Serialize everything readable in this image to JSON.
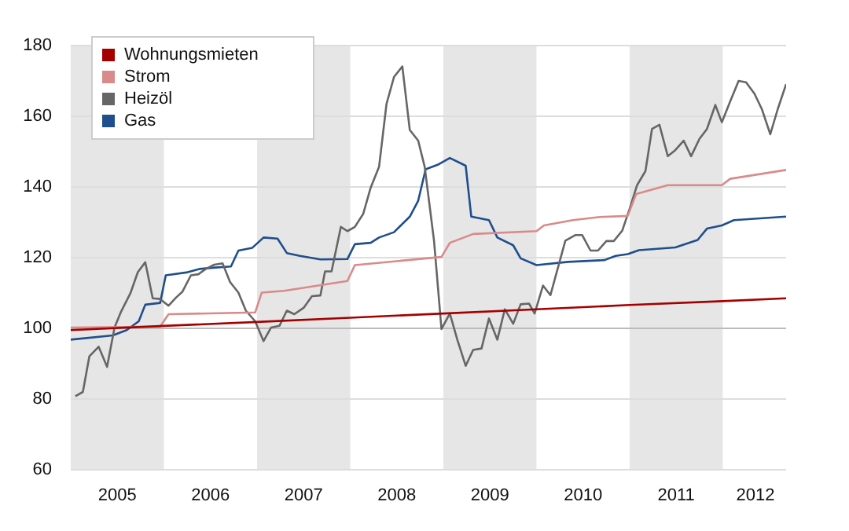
{
  "chart_data": {
    "type": "line",
    "xlim": [
      2005,
      2012.68
    ],
    "ylim": [
      60,
      180
    ],
    "yticks": [
      60,
      80,
      100,
      120,
      140,
      160,
      180
    ],
    "xticks": [
      {
        "value": 2005.5,
        "label": "2005"
      },
      {
        "value": 2006.5,
        "label": "2006"
      },
      {
        "value": 2007.5,
        "label": "2007"
      },
      {
        "value": 2008.5,
        "label": "2008"
      },
      {
        "value": 2009.5,
        "label": "2009"
      },
      {
        "value": 2010.5,
        "label": "2010"
      },
      {
        "value": 2011.5,
        "label": "2011"
      },
      {
        "value": 2012.35,
        "label": "2012"
      }
    ],
    "grid": "y",
    "legend": "top left",
    "ref_lines": [
      {
        "axis": "y",
        "value": 100,
        "color": "#bbbbbb"
      }
    ],
    "marker": "none",
    "line_style": "solid",
    "bands": [
      {
        "axis": "x",
        "from": 2005,
        "to": 2006,
        "color": "#e6e6e6"
      },
      {
        "axis": "x",
        "from": 2007,
        "to": 2008,
        "color": "#e6e6e6"
      },
      {
        "axis": "x",
        "from": 2009,
        "to": 2010,
        "color": "#e6e6e6"
      },
      {
        "axis": "x",
        "from": 2011,
        "to": 2012,
        "color": "#e6e6e6"
      }
    ],
    "series": [
      {
        "name": "Wohnungsmieten",
        "color": "#a50000",
        "x": [
          2005.0,
          2006.0,
          2007.0,
          2008.0,
          2009.0,
          2010.0,
          2011.0,
          2012.0,
          2012.68
        ],
        "values": [
          99.5,
          100.7,
          101.8,
          103.0,
          104.2,
          105.4,
          106.6,
          107.7,
          108.5
        ]
      },
      {
        "name": "Strom",
        "color": "#d98a8a",
        "x": [
          2005.0,
          2005.96,
          2006.05,
          2006.98,
          2007.05,
          2007.29,
          2007.97,
          2008.05,
          2008.98,
          2009.07,
          2009.32,
          2010.0,
          2010.08,
          2010.39,
          2010.68,
          2010.98,
          2011.07,
          2011.41,
          2011.99,
          2012.08,
          2012.68
        ],
        "values": [
          100.2,
          100.5,
          104,
          104.5,
          110.1,
          110.6,
          113.4,
          117.9,
          120.2,
          124.2,
          126.7,
          127.5,
          129.1,
          130.6,
          131.5,
          131.8,
          138.0,
          140.5,
          140.5,
          142.3,
          144.8
        ]
      },
      {
        "name": "Heizöl",
        "color": "#666666",
        "x": [
          2005.05,
          2005.13,
          2005.2,
          2005.3,
          2005.39,
          2005.47,
          2005.54,
          2005.64,
          2005.72,
          2005.8,
          2005.88,
          2005.96,
          2006.05,
          2006.13,
          2006.2,
          2006.29,
          2006.37,
          2006.45,
          2006.54,
          2006.63,
          2006.71,
          2006.8,
          2006.88,
          2006.98,
          2007.07,
          2007.15,
          2007.24,
          2007.32,
          2007.4,
          2007.5,
          2007.59,
          2007.68,
          2007.73,
          2007.8,
          2007.9,
          2007.97,
          2008.05,
          2008.14,
          2008.22,
          2008.31,
          2008.39,
          2008.47,
          2008.56,
          2008.64,
          2008.73,
          2008.8,
          2008.9,
          2008.98,
          2009.07,
          2009.15,
          2009.24,
          2009.32,
          2009.41,
          2009.49,
          2009.58,
          2009.66,
          2009.75,
          2009.83,
          2009.92,
          2009.98,
          2010.07,
          2010.15,
          2010.31,
          2010.42,
          2010.49,
          2010.58,
          2010.66,
          2010.75,
          2010.83,
          2010.92,
          2011.0,
          2011.08,
          2011.17,
          2011.24,
          2011.32,
          2011.41,
          2011.49,
          2011.58,
          2011.66,
          2011.75,
          2011.83,
          2011.92,
          2011.99,
          2012.08,
          2012.17,
          2012.25,
          2012.34,
          2012.42,
          2012.51,
          2012.59,
          2012.68
        ],
        "values": [
          80.8,
          82,
          92.1,
          94.8,
          89.1,
          100.2,
          104.7,
          109.9,
          115.9,
          118.7,
          108.5,
          108.3,
          106.4,
          108.7,
          110.4,
          115,
          115.3,
          116.8,
          118,
          118.4,
          113.1,
          110.1,
          105,
          102,
          96.4,
          100.2,
          100.7,
          105,
          104,
          105.8,
          109.1,
          109.3,
          116.1,
          116.1,
          128.7,
          127.5,
          128.7,
          132.4,
          139.8,
          145.7,
          163.5,
          171.1,
          174.1,
          156.1,
          153.1,
          145.7,
          124.8,
          99.8,
          104.2,
          96.8,
          89.4,
          93.9,
          94.3,
          102.8,
          96.8,
          105.4,
          101.3,
          106.8,
          107,
          104.2,
          112.1,
          109.4,
          124.8,
          126.4,
          126.4,
          122,
          122,
          124.7,
          124.7,
          127.6,
          133.8,
          140.5,
          144.5,
          156.4,
          157.6,
          148.7,
          150.4,
          153.1,
          148.7,
          153.6,
          156.4,
          163.2,
          158.3,
          164.2,
          170,
          169.6,
          166.4,
          162,
          154.9,
          162,
          169.1
        ]
      },
      {
        "name": "Gas",
        "color": "#1f4e8c",
        "x": [
          2005.0,
          2005.45,
          2005.6,
          2005.73,
          2005.8,
          2005.96,
          2006.02,
          2006.24,
          2006.38,
          2006.55,
          2006.72,
          2006.8,
          2006.95,
          2007.07,
          2007.22,
          2007.32,
          2007.46,
          2007.68,
          2007.97,
          2008.05,
          2008.22,
          2008.31,
          2008.47,
          2008.64,
          2008.73,
          2008.81,
          2008.95,
          2009.07,
          2009.24,
          2009.3,
          2009.49,
          2009.58,
          2009.75,
          2009.83,
          2010.0,
          2010.34,
          2010.73,
          2010.85,
          2010.98,
          2011.1,
          2011.49,
          2011.73,
          2011.83,
          2011.99,
          2012.12,
          2012.68
        ],
        "values": [
          96.8,
          98,
          99.5,
          102,
          106.7,
          107.2,
          115,
          115.8,
          116.8,
          117.2,
          117.5,
          122,
          122.8,
          125.7,
          125.4,
          121.3,
          120.5,
          119.5,
          119.6,
          123.8,
          124.2,
          125.7,
          127.2,
          131.6,
          136.1,
          145,
          146.4,
          148.2,
          146,
          131.6,
          130.6,
          125.7,
          123.5,
          119.8,
          117.9,
          118.8,
          119.3,
          120.5,
          121,
          122.1,
          122.9,
          125,
          128.2,
          129.1,
          130.6,
          131.6
        ]
      }
    ]
  }
}
